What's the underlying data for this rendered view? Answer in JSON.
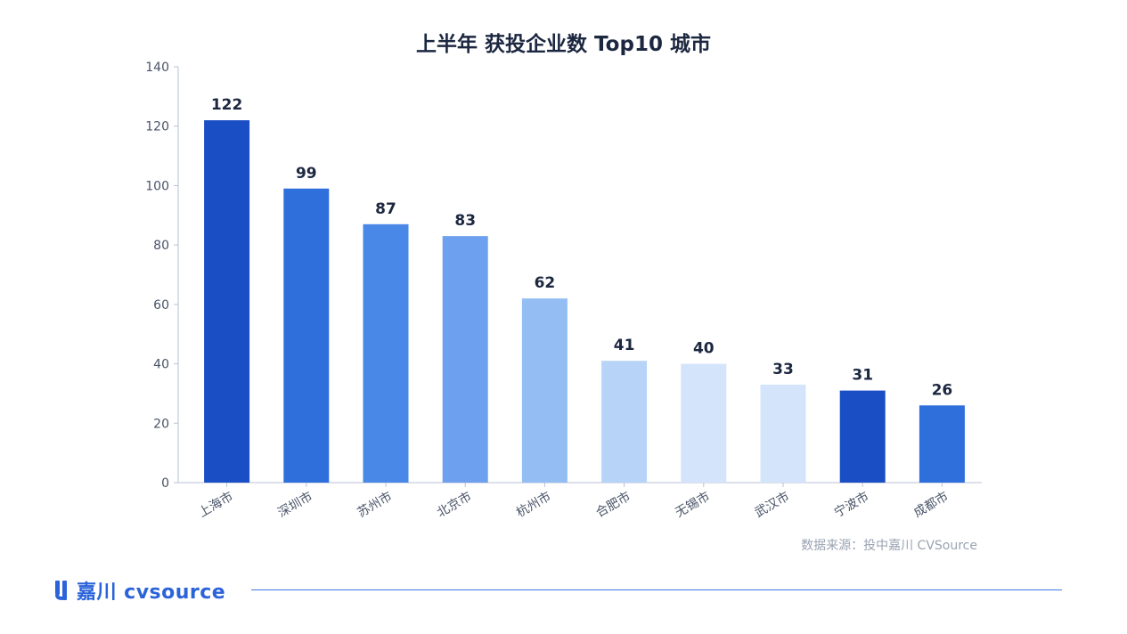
{
  "title": "上半年 获投企业数 Top10 城市",
  "source": "数据来源：投中嘉川 CVSource",
  "brand": {
    "name": "嘉川 cvsource",
    "mark": "cvsource-logo-icon"
  },
  "chart_data": {
    "type": "bar",
    "title": "上半年 获投企业数 Top10 城市",
    "categories": [
      "上海市",
      "深圳市",
      "苏州市",
      "北京市",
      "杭州市",
      "合肥市",
      "无锡市",
      "武汉市",
      "宁波市",
      "成都市"
    ],
    "values": [
      122,
      99,
      87,
      83,
      62,
      41,
      40,
      33,
      31,
      26
    ],
    "colors": [
      "#1a4ec4",
      "#2f6fdc",
      "#4a88e8",
      "#6da0ee",
      "#93bdf3",
      "#b7d4f8",
      "#d4e5fb",
      "#d4e5fb",
      "#1a4ec4",
      "#2f6fdc"
    ],
    "ylim": [
      0,
      140
    ],
    "yticks": [
      0,
      20,
      40,
      60,
      80,
      100,
      120,
      140
    ],
    "xlabel": "",
    "ylabel": "",
    "grid": false,
    "data_labels": true,
    "x_tick_rotation": "-30deg"
  }
}
